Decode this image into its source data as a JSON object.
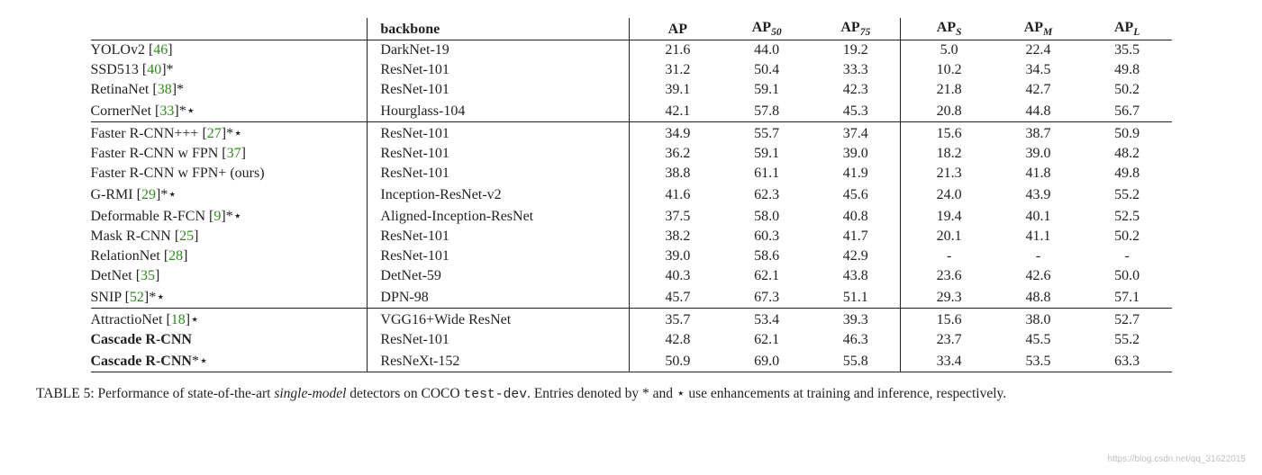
{
  "table": {
    "headers": {
      "method": "",
      "backbone": "backbone",
      "ap": "AP",
      "ap50_pre": "AP",
      "ap50_sub": "50",
      "ap75_pre": "AP",
      "ap75_sub": "75",
      "aps_pre": "AP",
      "aps_sub": "S",
      "apm_pre": "AP",
      "apm_sub": "M",
      "apl_pre": "AP",
      "apl_sub": "L"
    },
    "groups": [
      {
        "rows": [
          {
            "name": "YOLOv2",
            "cite": "46",
            "suffix": "",
            "bold": false,
            "backbone": "DarkNet-19",
            "AP": "21.6",
            "AP50": "44.0",
            "AP75": "19.2",
            "APS": "5.0",
            "APM": "22.4",
            "APL": "35.5"
          },
          {
            "name": "SSD513",
            "cite": "40",
            "suffix": "*",
            "bold": false,
            "backbone": "ResNet-101",
            "AP": "31.2",
            "AP50": "50.4",
            "AP75": "33.3",
            "APS": "10.2",
            "APM": "34.5",
            "APL": "49.8"
          },
          {
            "name": "RetinaNet",
            "cite": "38",
            "suffix": "*",
            "bold": false,
            "backbone": "ResNet-101",
            "AP": "39.1",
            "AP50": "59.1",
            "AP75": "42.3",
            "APS": "21.8",
            "APM": "42.7",
            "APL": "50.2"
          },
          {
            "name": "CornerNet",
            "cite": "33",
            "suffix": "*⋆",
            "bold": false,
            "backbone": "Hourglass-104",
            "AP": "42.1",
            "AP50": "57.8",
            "AP75": "45.3",
            "APS": "20.8",
            "APM": "44.8",
            "APL": "56.7"
          }
        ]
      },
      {
        "rows": [
          {
            "name": "Faster R-CNN+++",
            "cite": "27",
            "suffix": "*⋆",
            "bold": false,
            "backbone": "ResNet-101",
            "AP": "34.9",
            "AP50": "55.7",
            "AP75": "37.4",
            "APS": "15.6",
            "APM": "38.7",
            "APL": "50.9"
          },
          {
            "name": "Faster R-CNN w FPN",
            "cite": "37",
            "suffix": "",
            "bold": false,
            "backbone": "ResNet-101",
            "AP": "36.2",
            "AP50": "59.1",
            "AP75": "39.0",
            "APS": "18.2",
            "APM": "39.0",
            "APL": "48.2"
          },
          {
            "name": "Faster R-CNN w FPN+ (ours)",
            "cite": "",
            "suffix": "",
            "bold": false,
            "backbone": "ResNet-101",
            "AP": "38.8",
            "AP50": "61.1",
            "AP75": "41.9",
            "APS": "21.3",
            "APM": "41.8",
            "APL": "49.8"
          },
          {
            "name": "G-RMI",
            "cite": "29",
            "suffix": "*⋆",
            "bold": false,
            "backbone": "Inception-ResNet-v2",
            "AP": "41.6",
            "AP50": "62.3",
            "AP75": "45.6",
            "APS": "24.0",
            "APM": "43.9",
            "APL": "55.2"
          },
          {
            "name": "Deformable R-FCN",
            "cite": "9",
            "suffix": "*⋆",
            "bold": false,
            "backbone": "Aligned-Inception-ResNet",
            "AP": "37.5",
            "AP50": "58.0",
            "AP75": "40.8",
            "APS": "19.4",
            "APM": "40.1",
            "APL": "52.5"
          },
          {
            "name": "Mask R-CNN",
            "cite": "25",
            "suffix": "",
            "bold": false,
            "backbone": "ResNet-101",
            "AP": "38.2",
            "AP50": "60.3",
            "AP75": "41.7",
            "APS": "20.1",
            "APM": "41.1",
            "APL": "50.2"
          },
          {
            "name": "RelationNet",
            "cite": "28",
            "suffix": "",
            "bold": false,
            "backbone": "ResNet-101",
            "AP": "39.0",
            "AP50": "58.6",
            "AP75": "42.9",
            "APS": "-",
            "APM": "-",
            "APL": "-"
          },
          {
            "name": "DetNet",
            "cite": "35",
            "suffix": "",
            "bold": false,
            "backbone": "DetNet-59",
            "AP": "40.3",
            "AP50": "62.1",
            "AP75": "43.8",
            "APS": "23.6",
            "APM": "42.6",
            "APL": "50.0"
          },
          {
            "name": "SNIP",
            "cite": "52",
            "suffix": "*⋆",
            "bold": false,
            "backbone": "DPN-98",
            "AP": "45.7",
            "AP50": "67.3",
            "AP75": "51.1",
            "APS": "29.3",
            "APM": "48.8",
            "APL": "57.1"
          }
        ]
      },
      {
        "rows": [
          {
            "name": "AttractioNet",
            "cite": "18",
            "suffix": "⋆",
            "bold": false,
            "backbone": "VGG16+Wide ResNet",
            "AP": "35.7",
            "AP50": "53.4",
            "AP75": "39.3",
            "APS": "15.6",
            "APM": "38.0",
            "APL": "52.7"
          },
          {
            "name": "Cascade R-CNN",
            "cite": "",
            "suffix": "",
            "bold": true,
            "backbone": "ResNet-101",
            "AP": "42.8",
            "AP50": "62.1",
            "AP75": "46.3",
            "APS": "23.7",
            "APM": "45.5",
            "APL": "55.2"
          },
          {
            "name": "Cascade R-CNN",
            "cite": "",
            "suffix": "*⋆",
            "bold": true,
            "backbone": "ResNeXt-152",
            "AP": "50.9",
            "AP50": "69.0",
            "AP75": "55.8",
            "APS": "33.4",
            "APM": "53.5",
            "APL": "63.3"
          }
        ]
      }
    ]
  },
  "caption": {
    "label": "TABLE 5:",
    "before_italic": " Performance of state-of-the-art ",
    "italic": "single-model",
    "after_italic": " detectors on COCO ",
    "code": "test-dev",
    "after_code": ". Entries denoted by * and ⋆ use enhancements at training and inference, respectively."
  },
  "watermark": "https://blog.csdn.net/qq_31622015",
  "colors": {
    "text": "#221f20",
    "cite": "#2e8b1b",
    "rule": "#221f20",
    "background": "#ffffff",
    "watermark": "#bfbfbf"
  },
  "typography": {
    "body_fontsize_pt": 12,
    "caption_fontsize_pt": 11.5,
    "font_family": "Palatino / Book Antiqua (serif)"
  }
}
